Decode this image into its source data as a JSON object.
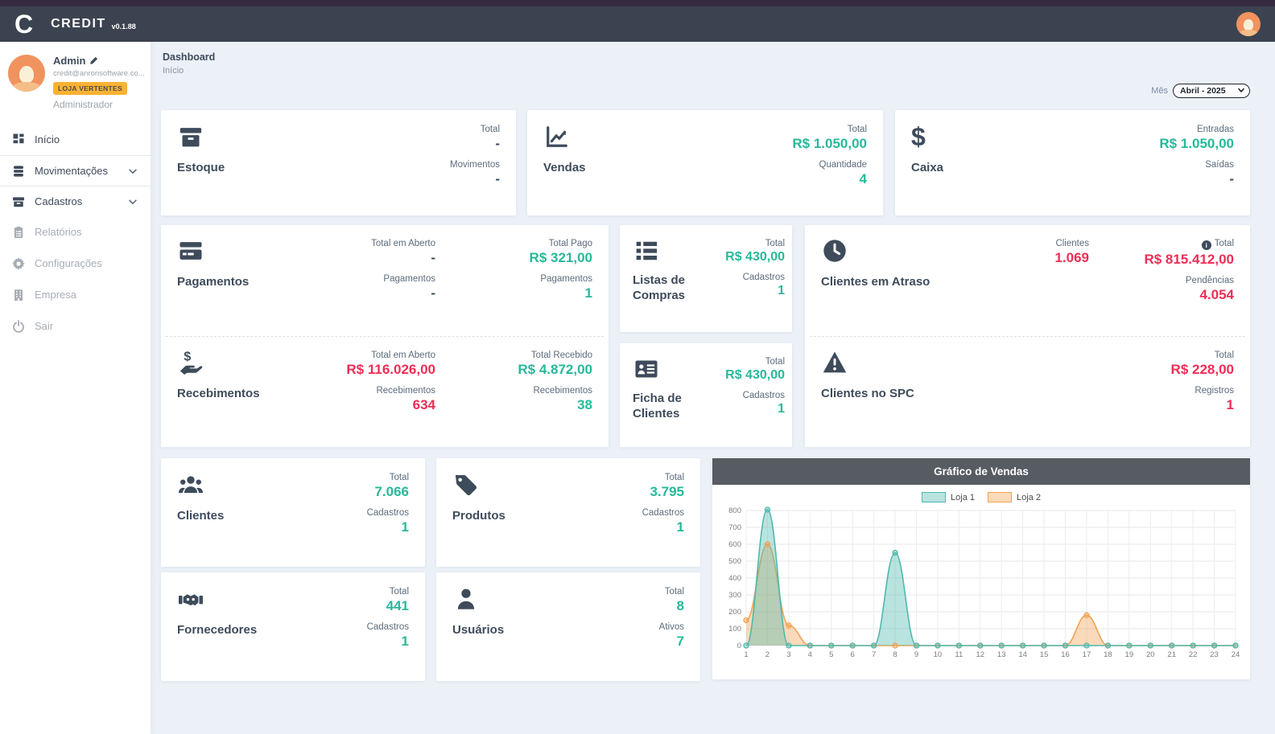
{
  "header": {
    "logo": "C",
    "brand": "CREDIT",
    "version": "v0.1.88"
  },
  "sidebar": {
    "user": {
      "name": "Admin",
      "email": "credit@anronsoftware.co...",
      "badge": "LOJA VERTENTES",
      "role": "Administrador"
    },
    "items": [
      {
        "label": "Início"
      },
      {
        "label": "Movimentações"
      },
      {
        "label": "Cadastros"
      },
      {
        "label": "Relatórios"
      },
      {
        "label": "Configurações"
      },
      {
        "label": "Empresa"
      },
      {
        "label": "Sair"
      }
    ]
  },
  "breadcrumb": {
    "title": "Dashboard",
    "subtitle": "Início"
  },
  "filter": {
    "label": "Mês",
    "selected": "Abril - 2025"
  },
  "cards": {
    "estoque": {
      "title": "Estoque",
      "s1_label": "Total",
      "s1_value": "-",
      "s2_label": "Movimentos",
      "s2_value": "-"
    },
    "vendas": {
      "title": "Vendas",
      "s1_label": "Total",
      "s1_value": "R$ 1.050,00",
      "s2_label": "Quantidade",
      "s2_value": "4"
    },
    "caixa": {
      "title": "Caixa",
      "s1_label": "Entradas",
      "s1_value": "R$ 1.050,00",
      "s2_label": "Saídas",
      "s2_value": "-"
    },
    "pagamentos": {
      "title": "Pagamentos",
      "open_label": "Total em Aberto",
      "open_value": "-",
      "open_count_label": "Pagamentos",
      "open_count_value": "-",
      "paid_label": "Total Pago",
      "paid_value": "R$ 321,00",
      "paid_count_label": "Pagamentos",
      "paid_count_value": "1"
    },
    "recebimentos": {
      "title": "Recebimentos",
      "open_label": "Total em Aberto",
      "open_value": "R$ 116.026,00",
      "open_count_label": "Recebimentos",
      "open_count_value": "634",
      "recv_label": "Total Recebido",
      "recv_value": "R$ 4.872,00",
      "recv_count_label": "Recebimentos",
      "recv_count_value": "38"
    },
    "listas": {
      "title": "Listas de Compras",
      "s1_label": "Total",
      "s1_value": "R$ 430,00",
      "s2_label": "Cadastros",
      "s2_value": "1"
    },
    "ficha": {
      "title": "Ficha de Clientes",
      "s1_label": "Total",
      "s1_value": "R$ 430,00",
      "s2_label": "Cadastros",
      "s2_value": "1"
    },
    "atraso": {
      "title": "Clientes em Atraso",
      "clientes_label": "Clientes",
      "clientes_value": "1.069",
      "total_label": "Total",
      "total_value": "R$ 815.412,00",
      "pend_label": "Pendências",
      "pend_value": "4.054"
    },
    "spc": {
      "title": "Clientes no SPC",
      "total_label": "Total",
      "total_value": "R$ 228,00",
      "reg_label": "Registros",
      "reg_value": "1"
    },
    "clientes": {
      "title": "Clientes",
      "s1_label": "Total",
      "s1_value": "7.066",
      "s2_label": "Cadastros",
      "s2_value": "1"
    },
    "produtos": {
      "title": "Produtos",
      "s1_label": "Total",
      "s1_value": "3.795",
      "s2_label": "Cadastros",
      "s2_value": "1"
    },
    "fornecedores": {
      "title": "Fornecedores",
      "s1_label": "Total",
      "s1_value": "441",
      "s2_label": "Cadastros",
      "s2_value": "1"
    },
    "usuarios": {
      "title": "Usuários",
      "s1_label": "Total",
      "s1_value": "8",
      "s2_label": "Ativos",
      "s2_value": "7"
    }
  },
  "chart": {
    "title": "Gráfico de Vendas"
  },
  "chart_data": {
    "type": "line",
    "title": "Gráfico de Vendas",
    "x": [
      1,
      2,
      3,
      4,
      5,
      6,
      7,
      8,
      9,
      10,
      11,
      12,
      13,
      14,
      15,
      16,
      17,
      18,
      19,
      20,
      21,
      22,
      23,
      24
    ],
    "series": [
      {
        "name": "Loja 1",
        "stroke": "#4fb9ae",
        "fill": "rgba(79,185,174,0.40)",
        "values": [
          0,
          805,
          0,
          0,
          0,
          0,
          0,
          550,
          0,
          0,
          0,
          0,
          0,
          0,
          0,
          0,
          0,
          0,
          0,
          0,
          0,
          0,
          0,
          0
        ]
      },
      {
        "name": "Loja 2",
        "stroke": "#f2a254",
        "fill": "rgba(242,162,84,0.40)",
        "values": [
          150,
          600,
          120,
          0,
          0,
          0,
          0,
          0,
          0,
          0,
          0,
          0,
          0,
          0,
          0,
          0,
          180,
          0,
          0,
          0,
          0,
          0,
          0,
          0
        ]
      }
    ],
    "ylim": [
      0,
      800
    ],
    "ytick_step": 100,
    "grid": true,
    "legend_position": "top"
  },
  "colors": {
    "accent_green": "#26b99a",
    "alert_red": "#ef2d56",
    "dark": "#3e4b5b",
    "header_bg": "#3c4350",
    "badge_orange": "#f9b233"
  }
}
